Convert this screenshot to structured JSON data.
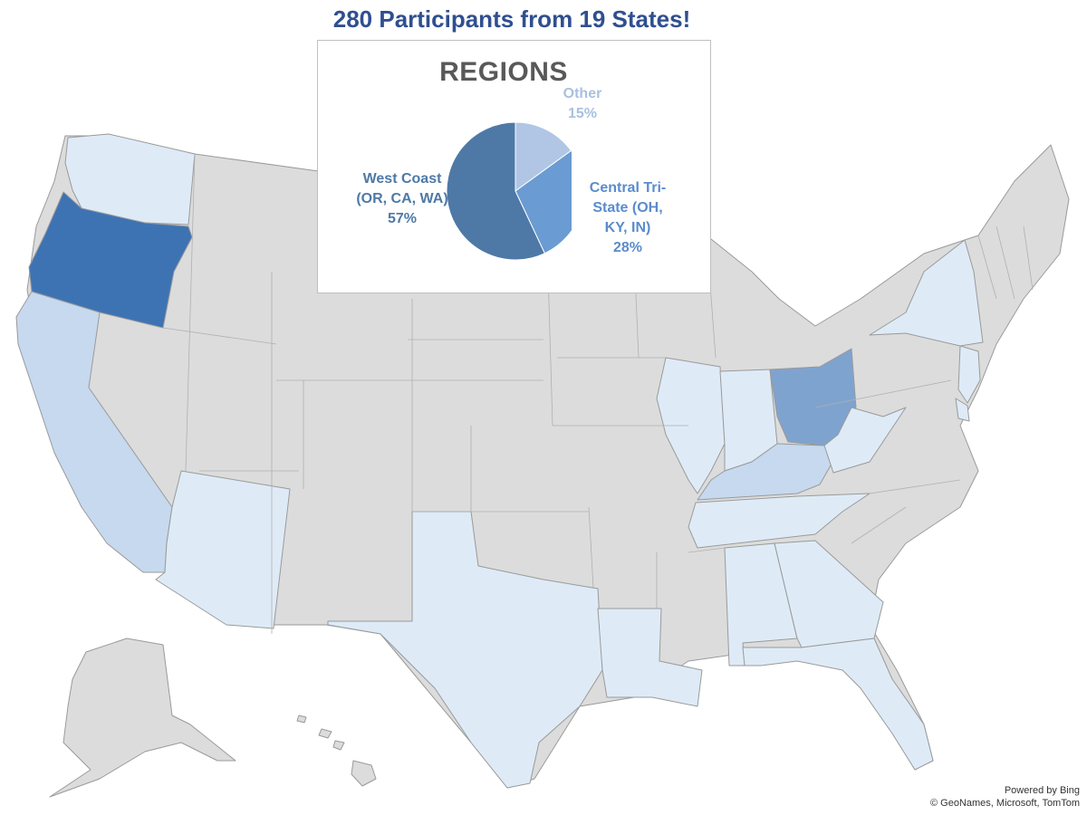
{
  "title": "280 Participants from 19 States!",
  "inset": {
    "title": "REGIONS",
    "labels": {
      "west_name": "West Coast (OR, CA, WA)",
      "west_pct": "57%",
      "central_name": "Central Tri-State (OH, KY, IN)",
      "central_pct": "28%",
      "other_name": "Other",
      "other_pct": "15%"
    }
  },
  "chart_data": {
    "type": "pie",
    "title": "REGIONS",
    "categories": [
      "West Coast (OR, CA, WA)",
      "Central Tri-State (OH, KY, IN)",
      "Other"
    ],
    "values": [
      57,
      28,
      15
    ],
    "colors": [
      "#4e79a7",
      "#6a9bd2",
      "#b0c6e4"
    ]
  },
  "map_colors": {
    "neutral": "#dcdcdc",
    "light": "#deebf7",
    "medium_light": "#c6d9ee",
    "medium": "#7fa3cf",
    "dark": "#3e73b3",
    "border": "#9a9a9a"
  },
  "credit": {
    "line1": "Powered by Bing",
    "line2": "© GeoNames, Microsoft, TomTom"
  }
}
